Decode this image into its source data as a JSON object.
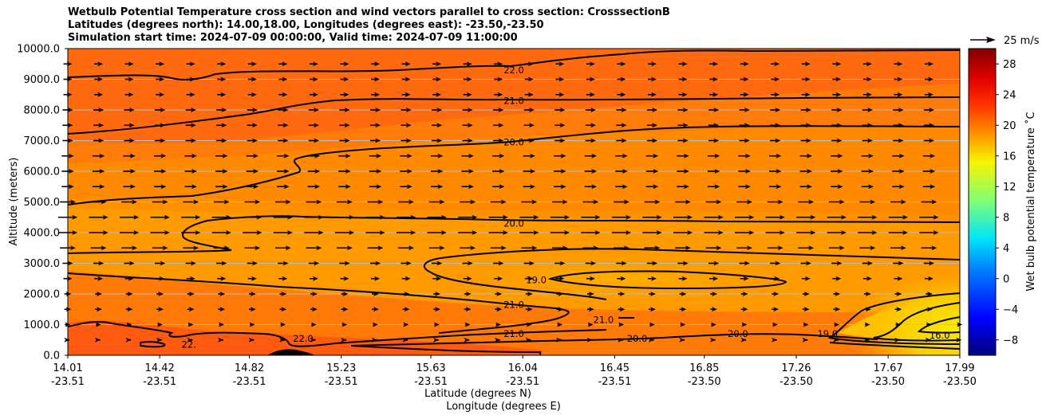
{
  "chart_data": {
    "type": "contour",
    "title": [
      "Wetbulb Potential Temperature cross section and wind vectors parallel to cross section: CrosssectionB",
      "Latitudes (degrees north): 14.00,18.00, Longitudes (degrees east): -23.50,-23.50",
      "Simulation start time: 2024-07-09 00:00:00, Valid time: 2024-07-09 11:00:00"
    ],
    "ylabel": "Altitude (meters)",
    "xlabel": "Latitude (degrees N)",
    "xlabel2": "Longitude (degrees E)",
    "ylim": [
      0,
      10000
    ],
    "xlim": [
      14.01,
      17.99
    ],
    "yticks": [
      "0.0",
      "1000.0",
      "2000.0",
      "3000.0",
      "4000.0",
      "5000.0",
      "6000.0",
      "7000.0",
      "8000.0",
      "9000.0",
      "10000.0"
    ],
    "xticks": [
      {
        "lat": "14.01",
        "lon": "-23.51"
      },
      {
        "lat": "14.42",
        "lon": "-23.51"
      },
      {
        "lat": "14.82",
        "lon": "-23.51"
      },
      {
        "lat": "15.23",
        "lon": "-23.51"
      },
      {
        "lat": "15.63",
        "lon": "-23.51"
      },
      {
        "lat": "16.04",
        "lon": "-23.51"
      },
      {
        "lat": "16.45",
        "lon": "-23.51"
      },
      {
        "lat": "16.85",
        "lon": "-23.50"
      },
      {
        "lat": "17.26",
        "lon": "-23.50"
      },
      {
        "lat": "17.67",
        "lon": "-23.50"
      },
      {
        "lat": "17.99",
        "lon": "-23.50"
      }
    ],
    "colorbar": {
      "label": "Wet bulb potential temperature ˚C",
      "range": [
        -10,
        30
      ],
      "ticks": [
        "−8",
        "−4",
        "0",
        "4",
        "8",
        "12",
        "16",
        "20",
        "24",
        "28"
      ]
    },
    "quiver_key": "25 m/s",
    "contour_labels": [
      {
        "text": "22.0",
        "lat": 16.0,
        "alt": 9300
      },
      {
        "text": "21.0",
        "lat": 16.0,
        "alt": 8300
      },
      {
        "text": "20.0",
        "lat": 16.0,
        "alt": 6950
      },
      {
        "text": "20.0",
        "lat": 16.0,
        "alt": 4300
      },
      {
        "text": "19.0",
        "lat": 16.1,
        "alt": 2450
      },
      {
        "text": "21.0",
        "lat": 16.0,
        "alt": 1650
      },
      {
        "text": "21.0",
        "lat": 16.0,
        "alt": 700
      },
      {
        "text": "21.0",
        "lat": 16.4,
        "alt": 1150
      },
      {
        "text": "20.0",
        "lat": 16.55,
        "alt": 550
      },
      {
        "text": "20.0",
        "lat": 17.0,
        "alt": 700
      },
      {
        "text": "19.0",
        "lat": 17.4,
        "alt": 700
      },
      {
        "text": "16.0",
        "lat": 17.9,
        "alt": 650
      },
      {
        "text": "22.0",
        "lat": 15.06,
        "alt": 550
      },
      {
        "text": "22.",
        "lat": 14.55,
        "alt": 350
      }
    ],
    "wind_rows": [
      {
        "alt": 9500,
        "u": 5
      },
      {
        "alt": 9000,
        "u": 5
      },
      {
        "alt": 8500,
        "u": 5
      },
      {
        "alt": 8000,
        "u": 6
      },
      {
        "alt": 7500,
        "u": 6
      },
      {
        "alt": 7000,
        "u": 6
      },
      {
        "alt": 6500,
        "u": 7
      },
      {
        "alt": 6000,
        "u": 7
      },
      {
        "alt": 5500,
        "u": 7
      },
      {
        "alt": 5000,
        "u": 9
      },
      {
        "alt": 4500,
        "u": 11
      },
      {
        "alt": 4000,
        "u": 11
      },
      {
        "alt": 3500,
        "u": 9
      },
      {
        "alt": 3000,
        "u": 6
      },
      {
        "alt": 2500,
        "u": 5
      },
      {
        "alt": 2000,
        "u": 4
      },
      {
        "alt": 1500,
        "u": 4
      },
      {
        "alt": 1000,
        "u": 3
      },
      {
        "alt": 500,
        "u": 2
      }
    ]
  }
}
